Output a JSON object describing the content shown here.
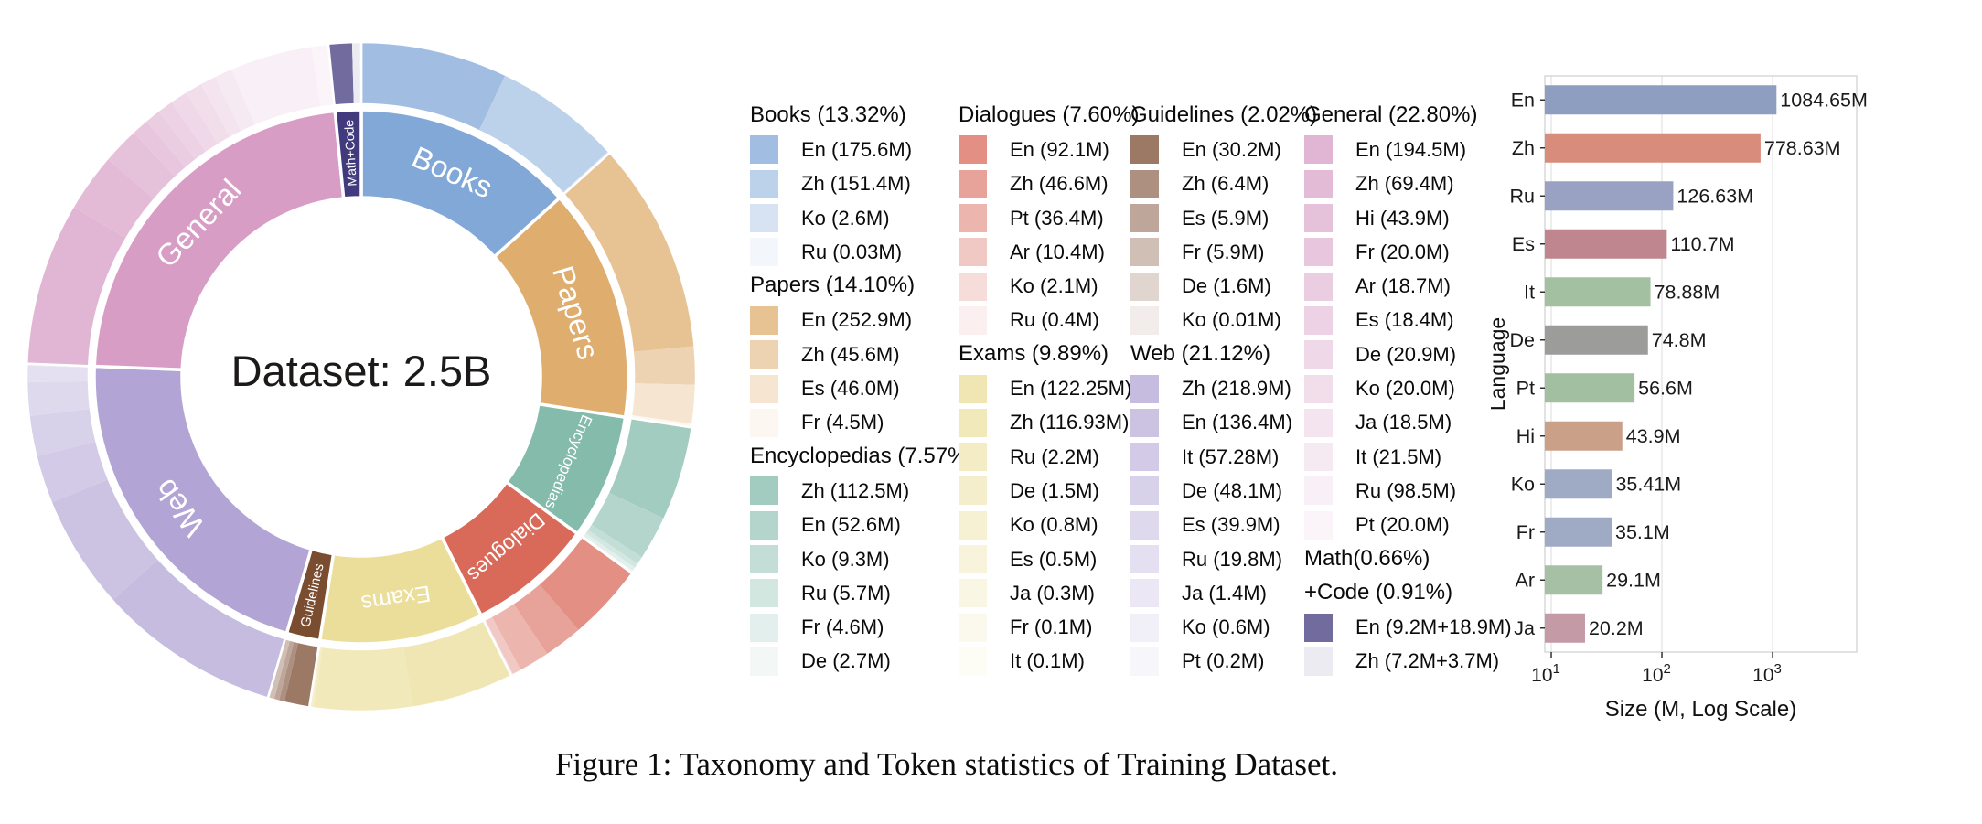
{
  "figure": {
    "caption": "Figure 1: Taxonomy and Token statistics of Training Dataset.",
    "center_label": "Dataset: 2.5B"
  },
  "chart_data": [
    {
      "type": "pie",
      "variant": "two-ring sunburst donut",
      "center_label": "Dataset: 2.5B",
      "total": "2.5B tokens",
      "legend_columns": [
        [
          "books",
          "papers",
          "encyclopedias"
        ],
        [
          "dialogues",
          "exams"
        ],
        [
          "guidelines",
          "web"
        ],
        [
          "general",
          "mathcode"
        ]
      ],
      "categories": [
        {
          "key": "books",
          "label": "Books",
          "pct": 13.32,
          "color": "#82A8D8",
          "header_lines": [
            "Books (13.32%)"
          ],
          "languages": [
            {
              "code": "En",
              "label": "En (175.6M)",
              "value": 175.6
            },
            {
              "code": "Zh",
              "label": "Zh (151.4M)",
              "value": 151.4
            },
            {
              "code": "Ko",
              "label": "Ko (2.6M)",
              "value": 2.6
            },
            {
              "code": "Ru",
              "label": "Ru (0.03M)",
              "value": 0.03
            }
          ]
        },
        {
          "key": "papers",
          "label": "Papers",
          "pct": 14.1,
          "color": "#DFAD6E",
          "header_lines": [
            "Papers (14.10%)"
          ],
          "languages": [
            {
              "code": "En",
              "label": "En (252.9M)",
              "value": 252.9
            },
            {
              "code": "Zh",
              "label": "Zh (45.6M)",
              "value": 45.6
            },
            {
              "code": "Es",
              "label": "Es (46.0M)",
              "value": 46.0
            },
            {
              "code": "Fr",
              "label": "Fr (4.5M)",
              "value": 4.5
            }
          ]
        },
        {
          "key": "encyclopedias",
          "label": "Encyclopedias",
          "pct": 7.57,
          "color": "#84BBAB",
          "header_lines": [
            "Encyclopedias (7.57%)"
          ],
          "languages": [
            {
              "code": "Zh",
              "label": "Zh (112.5M)",
              "value": 112.5
            },
            {
              "code": "En",
              "label": "En (52.6M)",
              "value": 52.6
            },
            {
              "code": "Ko",
              "label": "Ko (9.3M)",
              "value": 9.3
            },
            {
              "code": "Ru",
              "label": "Ru (5.7M)",
              "value": 5.7
            },
            {
              "code": "Fr",
              "label": "Fr (4.6M)",
              "value": 4.6
            },
            {
              "code": "De",
              "label": "De (2.7M)",
              "value": 2.7
            }
          ]
        },
        {
          "key": "dialogues",
          "label": "Dialogues",
          "pct": 7.6,
          "color": "#D96A5A",
          "header_lines": [
            "Dialogues (7.60%)"
          ],
          "languages": [
            {
              "code": "En",
              "label": "En (92.1M)",
              "value": 92.1
            },
            {
              "code": "Zh",
              "label": "Zh (46.6M)",
              "value": 46.6
            },
            {
              "code": "Pt",
              "label": "Pt (36.4M)",
              "value": 36.4
            },
            {
              "code": "Ar",
              "label": "Ar (10.4M)",
              "value": 10.4
            },
            {
              "code": "Ko",
              "label": "Ko (2.1M)",
              "value": 2.1
            },
            {
              "code": "Ru",
              "label": "Ru (0.4M)",
              "value": 0.4
            }
          ]
        },
        {
          "key": "exams",
          "label": "Exams",
          "pct": 9.89,
          "color": "#EBDE9A",
          "header_lines": [
            "Exams (9.89%)"
          ],
          "languages": [
            {
              "code": "En",
              "label": "En (122.25M)",
              "value": 122.25
            },
            {
              "code": "Zh",
              "label": "Zh (116.93M)",
              "value": 116.93
            },
            {
              "code": "Ru",
              "label": "Ru (2.2M)",
              "value": 2.2
            },
            {
              "code": "De",
              "label": "De (1.5M)",
              "value": 1.5
            },
            {
              "code": "Ko",
              "label": "Ko (0.8M)",
              "value": 0.8
            },
            {
              "code": "Es",
              "label": "Es (0.5M)",
              "value": 0.5
            },
            {
              "code": "Ja",
              "label": "Ja (0.3M)",
              "value": 0.3
            },
            {
              "code": "Fr",
              "label": "Fr (0.1M)",
              "value": 0.1
            },
            {
              "code": "It",
              "label": "It (0.1M)",
              "value": 0.1
            }
          ]
        },
        {
          "key": "guidelines",
          "label": "Guidelines",
          "pct": 2.02,
          "color": "#7A4C30",
          "header_lines": [
            "Guidelines (2.02%)"
          ],
          "languages": [
            {
              "code": "En",
              "label": "En (30.2M)",
              "value": 30.2
            },
            {
              "code": "Zh",
              "label": "Zh (6.4M)",
              "value": 6.4
            },
            {
              "code": "Es",
              "label": "Es (5.9M)",
              "value": 5.9
            },
            {
              "code": "Fr",
              "label": "Fr (5.9M)",
              "value": 5.9
            },
            {
              "code": "De",
              "label": "De (1.6M)",
              "value": 1.6
            },
            {
              "code": "Ko",
              "label": "Ko (0.01M)",
              "value": 0.01
            }
          ]
        },
        {
          "key": "web",
          "label": "Web",
          "pct": 21.12,
          "color": "#B2A5D5",
          "header_lines": [
            "Web (21.12%)"
          ],
          "languages": [
            {
              "code": "Zh",
              "label": "Zh (218.9M)",
              "value": 218.9
            },
            {
              "code": "En",
              "label": "En (136.4M)",
              "value": 136.4
            },
            {
              "code": "It",
              "label": "It (57.28M)",
              "value": 57.28
            },
            {
              "code": "De",
              "label": "De (48.1M)",
              "value": 48.1
            },
            {
              "code": "Es",
              "label": "Es (39.9M)",
              "value": 39.9
            },
            {
              "code": "Ru",
              "label": "Ru (19.8M)",
              "value": 19.8
            },
            {
              "code": "Ja",
              "label": "Ja (1.4M)",
              "value": 1.4
            },
            {
              "code": "Ko",
              "label": "Ko (0.6M)",
              "value": 0.6
            },
            {
              "code": "Pt",
              "label": "Pt (0.2M)",
              "value": 0.2
            }
          ]
        },
        {
          "key": "general",
          "label": "General",
          "pct": 22.8,
          "color": "#D79DC5",
          "header_lines": [
            "General (22.80%)"
          ],
          "languages": [
            {
              "code": "En",
              "label": "En (194.5M)",
              "value": 194.5
            },
            {
              "code": "Zh",
              "label": "Zh (69.4M)",
              "value": 69.4
            },
            {
              "code": "Hi",
              "label": "Hi (43.9M)",
              "value": 43.9
            },
            {
              "code": "Fr",
              "label": "Fr (20.0M)",
              "value": 20.0
            },
            {
              "code": "Ar",
              "label": "Ar (18.7M)",
              "value": 18.7
            },
            {
              "code": "Es",
              "label": "Es (18.4M)",
              "value": 18.4
            },
            {
              "code": "De",
              "label": "De (20.9M)",
              "value": 20.9
            },
            {
              "code": "Ko",
              "label": "Ko (20.0M)",
              "value": 20.0
            },
            {
              "code": "Ja",
              "label": "Ja (18.5M)",
              "value": 18.5
            },
            {
              "code": "It",
              "label": "It (21.5M)",
              "value": 21.5
            },
            {
              "code": "Ru",
              "label": "Ru (98.5M)",
              "value": 98.5
            },
            {
              "code": "Pt",
              "label": "Pt (20.0M)",
              "value": 20.0
            }
          ]
        },
        {
          "key": "mathcode",
          "label": "Math+Code",
          "pct": 1.57,
          "color": "#413A7D",
          "header_lines": [
            "Math(0.66%)",
            "+Code (0.91%)"
          ],
          "languages": [
            {
              "code": "En",
              "label": "En (9.2M+18.9M)",
              "value": 28.1
            },
            {
              "code": "Zh",
              "label": "Zh (7.2M+3.7M)",
              "value": 10.9
            }
          ]
        }
      ]
    },
    {
      "type": "bar",
      "orientation": "horizontal",
      "x_scale": "log",
      "xlabel": "Size (M, Log Scale)",
      "ylabel": "Language",
      "grid": true,
      "categories": [
        "En",
        "Zh",
        "Ru",
        "Es",
        "It",
        "De",
        "Pt",
        "Hi",
        "Ko",
        "Fr",
        "Ar",
        "Ja"
      ],
      "values": [
        1084.65,
        778.63,
        126.63,
        110.7,
        78.88,
        74.8,
        56.6,
        43.9,
        35.41,
        35.1,
        29.1,
        20.2
      ],
      "bar_labels": [
        "1084.65M",
        "778.63M",
        "126.63M",
        "110.7M",
        "78.88M",
        "74.8M",
        "56.6M",
        "43.9M",
        "35.41M",
        "35.1M",
        "29.1M",
        "20.2M"
      ],
      "colors": [
        "#8E9EC1",
        "#D88C7C",
        "#99A2C3",
        "#C0868F",
        "#A3C0A1",
        "#9C9C9A",
        "#A2BFA2",
        "#CBA089",
        "#9FABC5",
        "#9FABC5",
        "#A5C0A5",
        "#C49AA7"
      ],
      "xticks": [
        {
          "value": 10,
          "base": "10",
          "sup": "1"
        },
        {
          "value": 100,
          "base": "10",
          "sup": "2"
        },
        {
          "value": 1000,
          "base": "10",
          "sup": "3"
        }
      ],
      "xlim": [
        8.75,
        5754
      ]
    }
  ]
}
